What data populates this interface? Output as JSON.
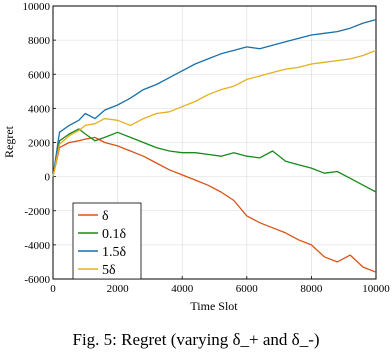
{
  "caption": "Fig. 5: Regret (varying δ_+ and δ_-)",
  "chart_data": {
    "type": "line",
    "title": "",
    "xlabel": "Time Slot",
    "ylabel": "Regret",
    "xlim": [
      0,
      10000
    ],
    "ylim": [
      -6000,
      10000
    ],
    "xticks": [
      "0",
      "2000",
      "4000",
      "6000",
      "8000",
      "10000"
    ],
    "yticks": [
      "-6000",
      "-4000",
      "-2000",
      "0",
      "2000",
      "4000",
      "6000",
      "8000",
      "10000"
    ],
    "grid": true,
    "legend_position": "bottom-left",
    "series": [
      {
        "name": "δ",
        "color": "#d95319",
        "x": [
          0,
          200,
          500,
          800,
          1000,
          1300,
          1600,
          2000,
          2400,
          2800,
          3200,
          3600,
          4000,
          4400,
          4800,
          5200,
          5600,
          6000,
          6400,
          6800,
          7200,
          7600,
          8000,
          8400,
          8800,
          9200,
          9600,
          10000
        ],
        "y": [
          0,
          1700,
          2000,
          2100,
          2200,
          2300,
          2000,
          1800,
          1500,
          1200,
          800,
          400,
          100,
          -200,
          -500,
          -900,
          -1400,
          -2300,
          -2700,
          -3000,
          -3300,
          -3700,
          -4000,
          -4700,
          -5000,
          -4600,
          -5300,
          -5600
        ]
      },
      {
        "name": "0.1δ",
        "color": "#188a18",
        "x": [
          0,
          200,
          500,
          800,
          1000,
          1300,
          1600,
          2000,
          2400,
          2800,
          3200,
          3600,
          4000,
          4400,
          4800,
          5200,
          5600,
          6000,
          6400,
          6800,
          7200,
          7600,
          8000,
          8400,
          8800,
          9200,
          9600,
          10000
        ],
        "y": [
          0,
          2100,
          2500,
          2800,
          2500,
          2100,
          2300,
          2600,
          2300,
          2000,
          1700,
          1500,
          1400,
          1400,
          1300,
          1200,
          1400,
          1200,
          1100,
          1500,
          900,
          700,
          500,
          200,
          300,
          -100,
          -500,
          -900
        ]
      },
      {
        "name": "1.5δ",
        "color": "#1a6fa8",
        "x": [
          0,
          200,
          500,
          800,
          1000,
          1300,
          1600,
          2000,
          2400,
          2800,
          3200,
          3600,
          4000,
          4400,
          4800,
          5200,
          5600,
          6000,
          6400,
          6800,
          7200,
          7600,
          8000,
          8400,
          8800,
          9200,
          9600,
          10000
        ],
        "y": [
          0,
          2600,
          3000,
          3300,
          3700,
          3400,
          3900,
          4200,
          4600,
          5100,
          5400,
          5800,
          6200,
          6600,
          6900,
          7200,
          7400,
          7600,
          7500,
          7700,
          7900,
          8100,
          8300,
          8400,
          8500,
          8700,
          9000,
          9200
        ]
      },
      {
        "name": "5δ",
        "color": "#e5b020",
        "x": [
          0,
          200,
          500,
          800,
          1000,
          1300,
          1600,
          2000,
          2400,
          2800,
          3200,
          3600,
          4000,
          4400,
          4800,
          5200,
          5600,
          6000,
          6400,
          6800,
          7200,
          7600,
          8000,
          8400,
          8800,
          9200,
          9600,
          10000
        ],
        "y": [
          0,
          1900,
          2400,
          2700,
          3000,
          3100,
          3400,
          3300,
          3000,
          3400,
          3700,
          3800,
          4100,
          4400,
          4800,
          5100,
          5300,
          5700,
          5900,
          6100,
          6300,
          6400,
          6600,
          6700,
          6800,
          6900,
          7100,
          7400
        ]
      }
    ]
  }
}
